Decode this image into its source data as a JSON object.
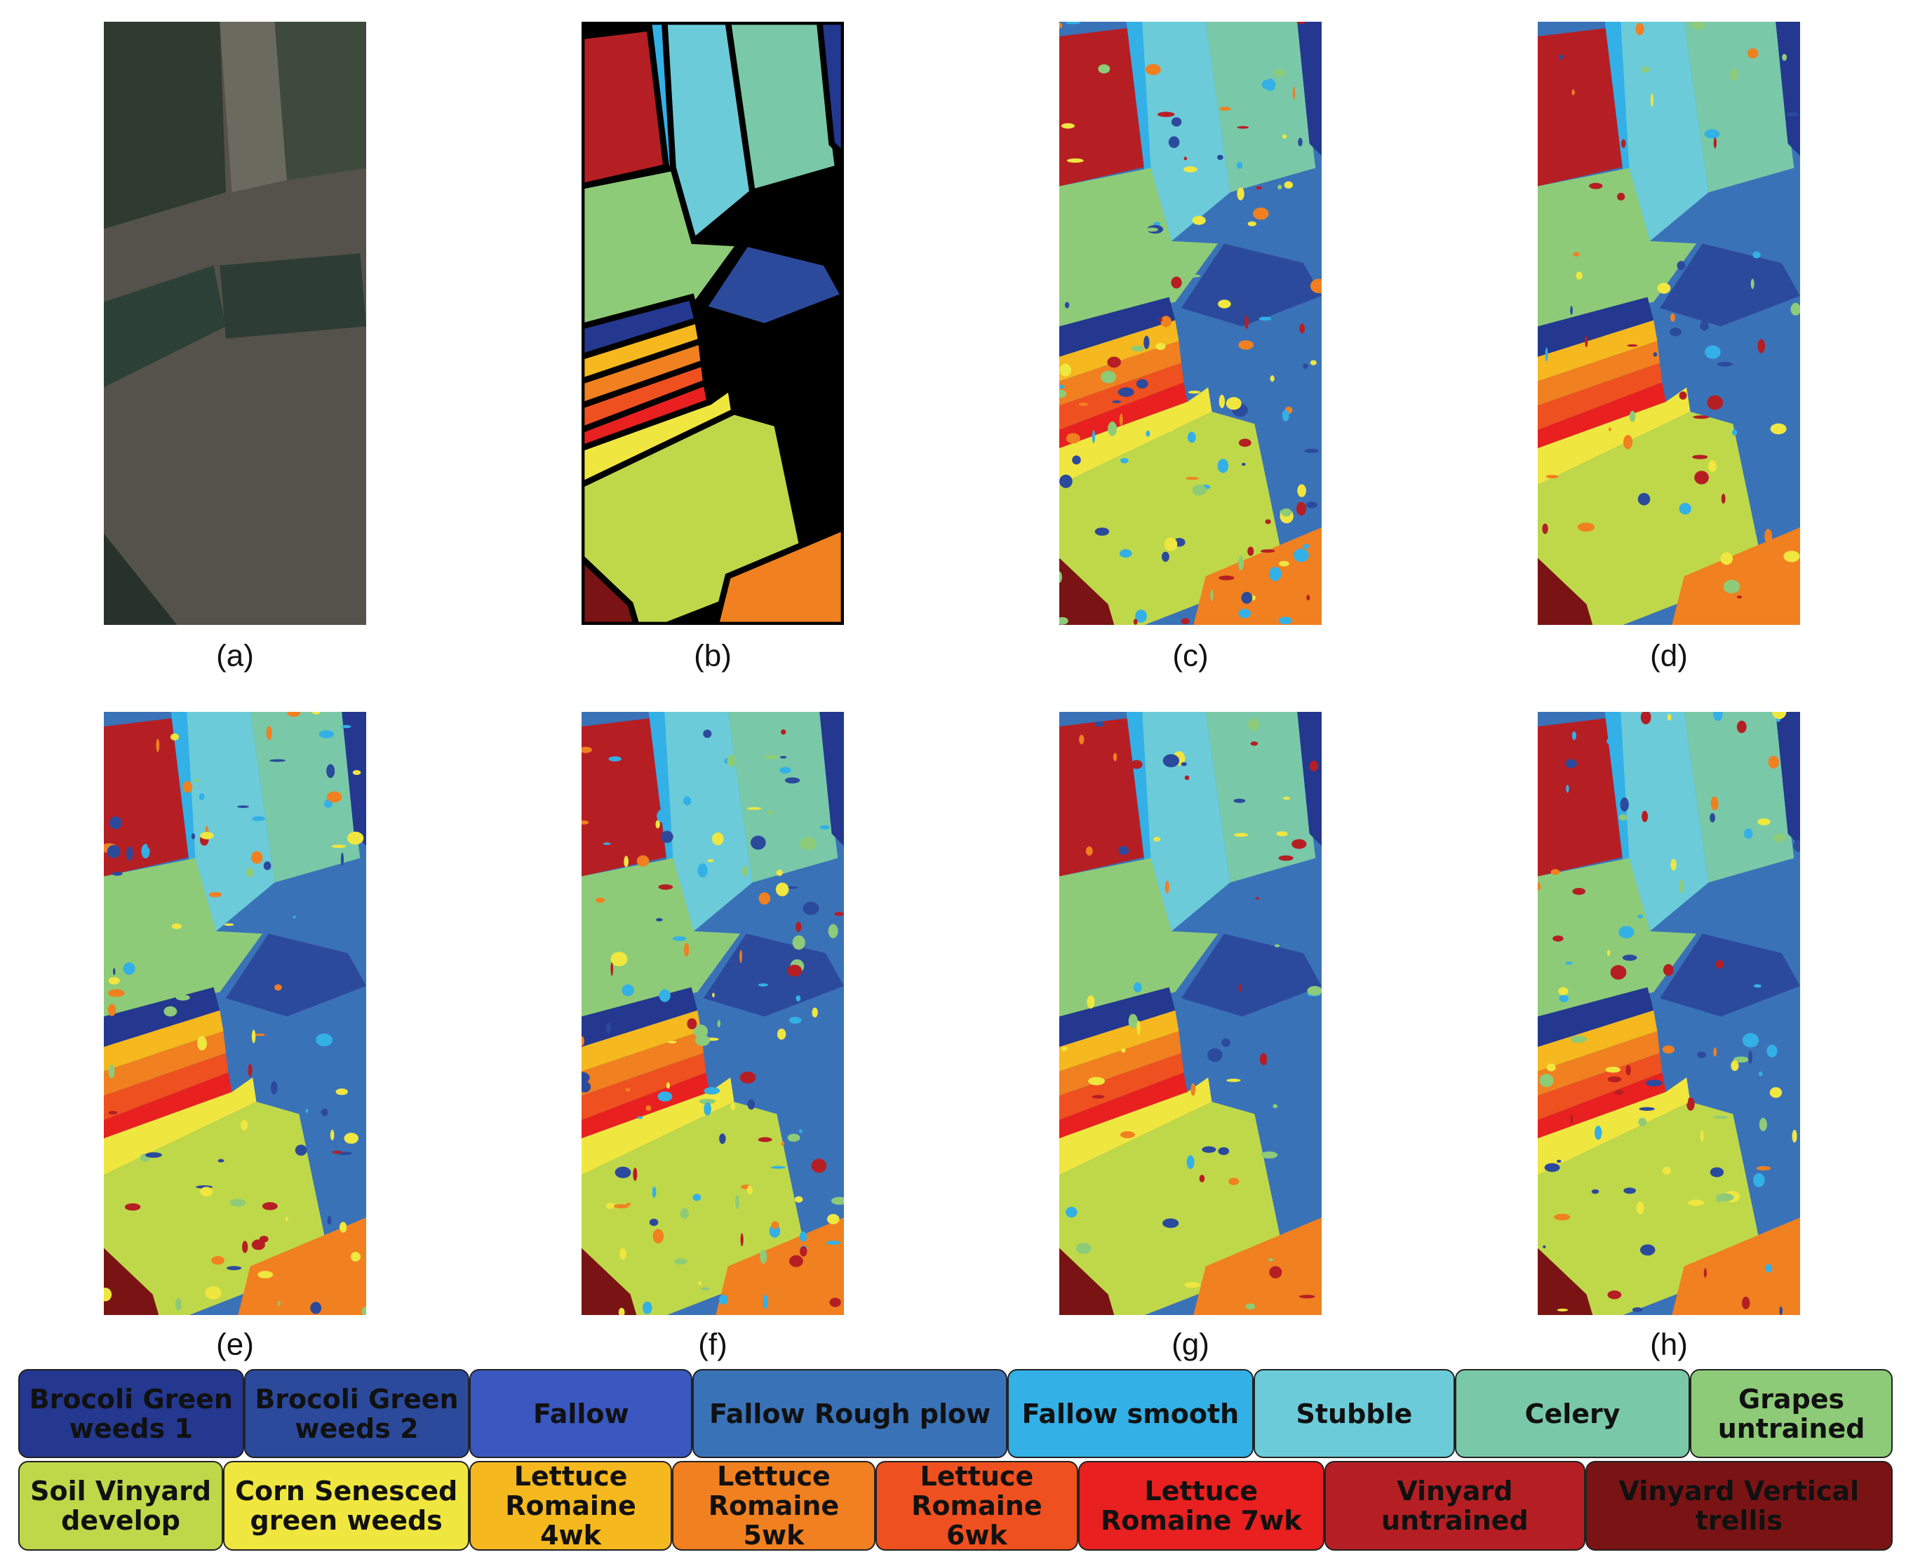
{
  "panels": [
    {
      "label": "(a)"
    },
    {
      "label": "(b)"
    },
    {
      "label": "(c)"
    },
    {
      "label": "(d)"
    },
    {
      "label": "(e)"
    },
    {
      "label": "(f)"
    },
    {
      "label": "(g)"
    },
    {
      "label": "(h)"
    }
  ],
  "legend": {
    "items": [
      {
        "label": "Brocoli Green weeds 1",
        "color": "#24388f"
      },
      {
        "label": "Brocoli Green weeds 2",
        "color": "#2c4a9c"
      },
      {
        "label": "Fallow",
        "color": "#3a58c0"
      },
      {
        "label": "Fallow Rough plow",
        "color": "#3a72b8"
      },
      {
        "label": "Fallow smooth",
        "color": "#33b0e6"
      },
      {
        "label": "Stubble",
        "color": "#6ccbd9"
      },
      {
        "label": "Celery",
        "color": "#79c9a8"
      },
      {
        "label": "Grapes untrained",
        "color": "#8ecb78"
      },
      {
        "label": "Soil Vinyard develop",
        "color": "#bfd84a"
      },
      {
        "label": "Corn Senesced green weeds",
        "color": "#f0e640"
      },
      {
        "label": "Lettuce Romaine 4wk",
        "color": "#f5b81e"
      },
      {
        "label": "Lettuce Romaine 5wk",
        "color": "#f08020"
      },
      {
        "label": "Lettuce Romaine 6wk",
        "color": "#ef5020"
      },
      {
        "label": "Lettuce Romaine 7wk",
        "color": "#e82020"
      },
      {
        "label": "Vinyard untrained",
        "color": "#b51f24"
      },
      {
        "label": "Vinyard Vertical trellis",
        "color": "#7a1414"
      }
    ]
  }
}
